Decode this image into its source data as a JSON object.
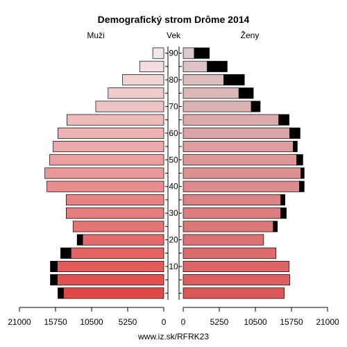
{
  "chart_data": {
    "type": "bar",
    "title": "Demografický strom Drôme 2014",
    "left_label": "Muži",
    "center_label": "Vek",
    "right_label": "Ženy",
    "footer": "www.iz.sk/RFRK23",
    "xlim": [
      0,
      21000
    ],
    "x_tick_labels_left": [
      "21000",
      "15750",
      "10500",
      "5250",
      "0"
    ],
    "x_tick_labels_right": [
      "0",
      "5250",
      "10500",
      "15750",
      "21000"
    ],
    "x_tick_values": [
      21000,
      15750,
      10500,
      5250,
      0
    ],
    "age_tick_labels": [
      "10",
      "20",
      "30",
      "40",
      "50",
      "60",
      "70",
      "80",
      "90"
    ],
    "age_groups": [
      "0-4",
      "5-9",
      "10-14",
      "15-19",
      "20-24",
      "25-29",
      "30-34",
      "35-39",
      "40-44",
      "45-49",
      "50-54",
      "55-59",
      "60-64",
      "65-69",
      "70-74",
      "75-79",
      "80-84",
      "85-89",
      "90+"
    ],
    "males": {
      "base": [
        14600,
        15500,
        15500,
        13500,
        11800,
        13200,
        14200,
        14200,
        17000,
        17300,
        16600,
        16100,
        15400,
        14100,
        9900,
        8100,
        6000,
        3500,
        1600
      ],
      "excess": [
        800,
        1000,
        1000,
        1500,
        800,
        0,
        0,
        0,
        0,
        0,
        0,
        0,
        0,
        0,
        0,
        0,
        0,
        0,
        0
      ]
    },
    "females": {
      "base": [
        14700,
        15500,
        15400,
        13500,
        11700,
        13100,
        14200,
        14200,
        16900,
        17100,
        16500,
        16000,
        15500,
        13900,
        9900,
        8100,
        5900,
        3500,
        1600
      ],
      "excess": [
        0,
        0,
        0,
        0,
        0,
        600,
        800,
        600,
        700,
        500,
        900,
        600,
        1500,
        1500,
        1300,
        2100,
        3000,
        2900,
        2200
      ]
    },
    "colors": {
      "young": "#e04848",
      "old": "#f2e6e6",
      "female_young": "#dc5858",
      "female_old": "#dccaca",
      "excess": "#000000",
      "outline": "#000000"
    }
  }
}
